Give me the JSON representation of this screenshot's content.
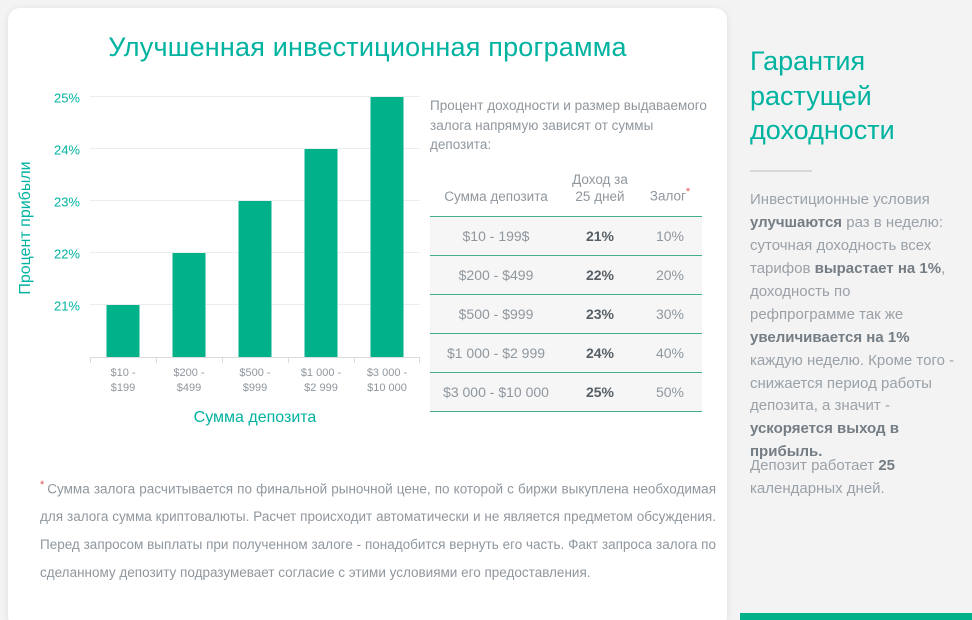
{
  "accent": {
    "teal_text": "#00b3a0",
    "bar_fill": "#00b189",
    "table_line": "#43af8f",
    "note_red": "#e25555"
  },
  "page": {
    "title": "Улучшенная инвестиционная программа"
  },
  "chart_data": {
    "type": "bar",
    "title": "",
    "xlabel": "Сумма депозита",
    "ylabel": "Процент прибыли",
    "categories": [
      "$10 -\n$199",
      "$200 -\n$499",
      "$500 -\n$999",
      "$1 000 -\n$2 999",
      "$3 000 -\n$10 000"
    ],
    "values": [
      21,
      22,
      23,
      24,
      25
    ],
    "ylim": [
      20,
      25
    ],
    "yticks": [
      21,
      22,
      23,
      24,
      25
    ],
    "ytick_suffix": "%",
    "grid": "horizontal",
    "legend": "none",
    "bar_color": "#00b189"
  },
  "table": {
    "intro": "Процент доходности и размер выдаваемого залога напрямую зависят от суммы депозита:",
    "headers": [
      "Сумма депозита",
      "Доход за 25 дней",
      "Залог"
    ],
    "header_note_symbol": "*",
    "rows": [
      {
        "deposit": "$10 - 199$",
        "income": "21%",
        "collateral": "10%"
      },
      {
        "deposit": "$200 - $499",
        "income": "22%",
        "collateral": "20%"
      },
      {
        "deposit": "$500 - $999",
        "income": "23%",
        "collateral": "30%"
      },
      {
        "deposit": "$1 000 - $2 999",
        "income": "24%",
        "collateral": "40%"
      },
      {
        "deposit": "$3 000 - $10 000",
        "income": "25%",
        "collateral": "50%"
      }
    ]
  },
  "footnote": {
    "symbol": "*",
    "text": "Сумма залога расчитывается по финальной рыночной цене, по которой с биржи выкуплена необходимая для залога сумма криптовалюты. Расчет происходит автоматически и не является предметом обсуждения. Перед запросом выплаты при полученном залоге - понадобится вернуть его часть. Факт запроса залога по сделанному депозиту подразумевает согласие с этими условиями его предоставления."
  },
  "sidebar": {
    "heading": "Гарантия растущей доходности",
    "paragraph1_parts": [
      {
        "text": "Инвестиционные условия ",
        "bold": false
      },
      {
        "text": "улучшаются",
        "bold": true
      },
      {
        "text": " раз в неделю: суточная доходность всех тарифов ",
        "bold": false
      },
      {
        "text": "вырастает на 1%",
        "bold": true
      },
      {
        "text": ", доходность по рефпрограмме так же ",
        "bold": false
      },
      {
        "text": "увеличивается на 1%",
        "bold": true
      },
      {
        "text": " каждую неделю. Кроме того - снижается период работы депозита, а значит - ",
        "bold": false
      },
      {
        "text": "ускоряется выход в прибыль.",
        "bold": true
      }
    ],
    "paragraph2_parts": [
      {
        "text": "Депозит работает ",
        "bold": false
      },
      {
        "text": "25",
        "bold": true
      },
      {
        "text": " календарных дней.",
        "bold": false
      }
    ]
  }
}
